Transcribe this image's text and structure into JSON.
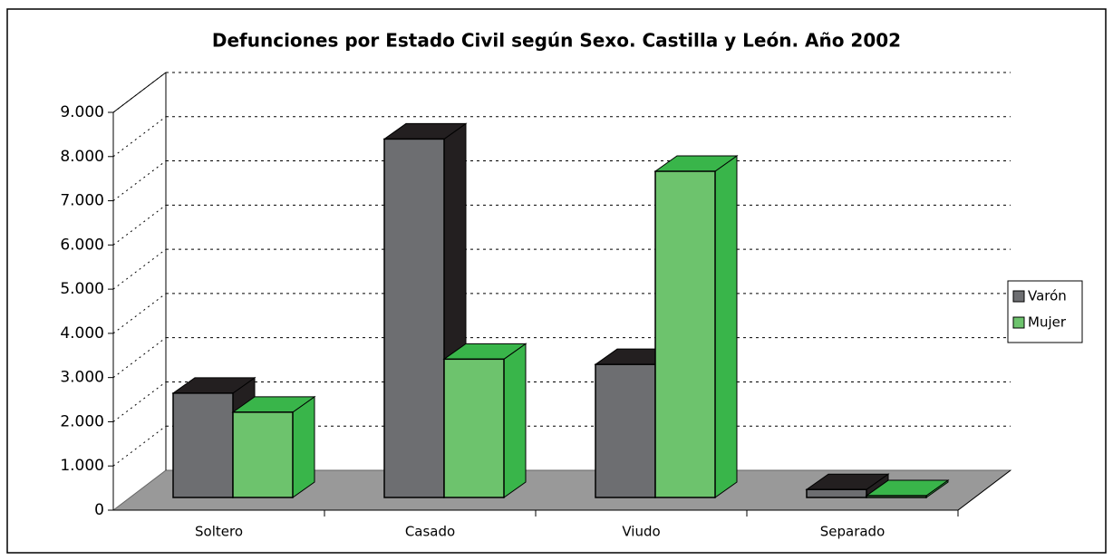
{
  "chart_data": {
    "type": "bar3d",
    "title": "Defunciones por Estado Civil según Sexo. Castilla y León. Año 2002",
    "categories": [
      "Soltero",
      "Casado",
      "Viudo",
      "Separado"
    ],
    "series": [
      {
        "name": "Varón",
        "color": "#6d6e71",
        "values": [
          2360,
          8110,
          3010,
          180
        ]
      },
      {
        "name": "Mujer",
        "color": "#6dc36d",
        "values": [
          1930,
          3130,
          7380,
          40
        ]
      }
    ],
    "ylim": [
      0,
      9000
    ],
    "yticks": [
      0,
      {
        "value": 1000,
        "label": "1.000"
      },
      {
        "value": 2000,
        "label": "2.000"
      },
      {
        "value": 3000,
        "label": "3.000"
      },
      {
        "value": 4000,
        "label": "4.000"
      },
      {
        "value": 5000,
        "label": "5.000"
      },
      {
        "value": 6000,
        "label": "6.000"
      },
      {
        "value": 7000,
        "label": "7.000"
      },
      {
        "value": 8000,
        "label": "8.000"
      },
      {
        "value": 9000,
        "label": "9.000"
      }
    ],
    "grid": true,
    "legend": "right"
  }
}
